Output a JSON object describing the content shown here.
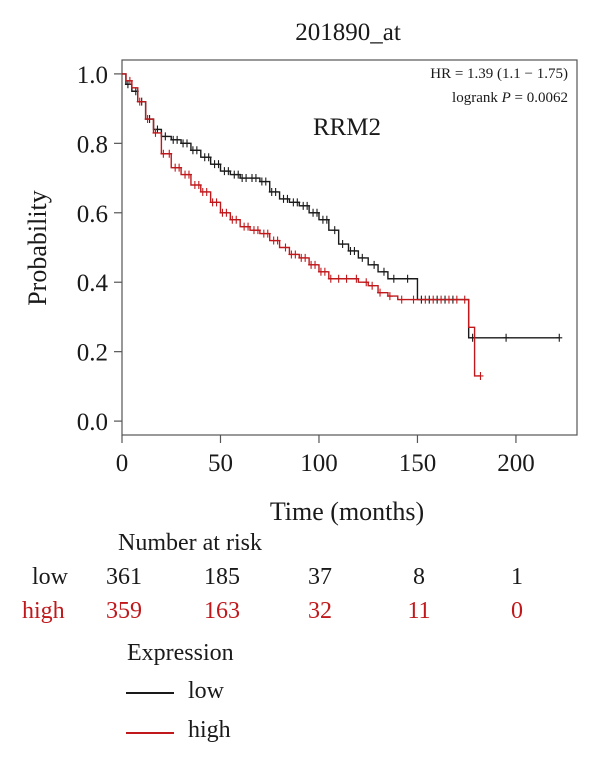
{
  "chart_data": {
    "type": "line",
    "title": "201890_at",
    "annotation": "RRM2",
    "stats": {
      "hr_text": "HR = 1.39 (1.1 − 1.75)",
      "logrank_prefix": "logrank ",
      "logrank_p_symbol": "P",
      "logrank_p_value": " = 0.0062"
    },
    "xlabel": "Time (months)",
    "ylabel": "Probability",
    "xlim": [
      0,
      231
    ],
    "ylim": [
      -0.04,
      1.04
    ],
    "xticks": [
      0,
      50,
      100,
      150,
      200
    ],
    "yticks": [
      0.0,
      0.2,
      0.4,
      0.6,
      0.8,
      1.0
    ],
    "ytick_labels": [
      "0.0",
      "0.2",
      "0.4",
      "0.6",
      "0.8",
      "1.0"
    ],
    "series": [
      {
        "name": "low",
        "color": "#1a1a1a",
        "x": [
          0,
          2,
          5,
          8,
          12,
          16,
          20,
          25,
          30,
          35,
          40,
          45,
          50,
          55,
          60,
          65,
          70,
          75,
          80,
          85,
          90,
          95,
          100,
          105,
          110,
          115,
          120,
          125,
          130,
          135,
          140,
          145,
          150,
          155,
          160,
          165,
          170,
          175,
          176,
          190,
          200,
          222
        ],
        "y": [
          1.0,
          0.97,
          0.95,
          0.92,
          0.87,
          0.84,
          0.82,
          0.81,
          0.8,
          0.78,
          0.76,
          0.74,
          0.72,
          0.71,
          0.7,
          0.7,
          0.69,
          0.66,
          0.64,
          0.63,
          0.62,
          0.6,
          0.58,
          0.55,
          0.51,
          0.49,
          0.47,
          0.45,
          0.43,
          0.41,
          0.41,
          0.41,
          0.35,
          0.35,
          0.35,
          0.35,
          0.35,
          0.35,
          0.24,
          0.24,
          0.24,
          0.24
        ],
        "censor_x": [
          3,
          7,
          10,
          14,
          18,
          22,
          26,
          28,
          31,
          33,
          36,
          38,
          42,
          44,
          47,
          49,
          52,
          54,
          57,
          59,
          61,
          63,
          66,
          68,
          71,
          73,
          76,
          78,
          82,
          84,
          87,
          89,
          92,
          94,
          97,
          99,
          102,
          104,
          108,
          112,
          116,
          118,
          122,
          128,
          133,
          138,
          145,
          152,
          156,
          160,
          164,
          168,
          178,
          195,
          222
        ]
      },
      {
        "name": "high",
        "color": "#c0181b",
        "x": [
          0,
          2,
          5,
          8,
          12,
          16,
          20,
          25,
          30,
          35,
          40,
          45,
          50,
          55,
          60,
          65,
          70,
          75,
          80,
          85,
          90,
          95,
          100,
          105,
          110,
          115,
          120,
          125,
          130,
          135,
          140,
          145,
          150,
          155,
          160,
          165,
          170,
          175,
          176,
          178,
          179,
          182
        ],
        "y": [
          1.0,
          0.98,
          0.96,
          0.92,
          0.87,
          0.83,
          0.77,
          0.73,
          0.71,
          0.68,
          0.66,
          0.63,
          0.6,
          0.58,
          0.56,
          0.55,
          0.54,
          0.52,
          0.5,
          0.48,
          0.47,
          0.45,
          0.43,
          0.41,
          0.41,
          0.41,
          0.4,
          0.39,
          0.37,
          0.36,
          0.35,
          0.35,
          0.35,
          0.35,
          0.35,
          0.35,
          0.35,
          0.35,
          0.27,
          0.27,
          0.13,
          0.13
        ],
        "censor_x": [
          4,
          9,
          13,
          17,
          21,
          24,
          27,
          29,
          32,
          34,
          37,
          39,
          41,
          43,
          46,
          48,
          51,
          53,
          56,
          58,
          62,
          64,
          67,
          69,
          72,
          74,
          77,
          79,
          83,
          86,
          88,
          91,
          93,
          96,
          98,
          101,
          103,
          106,
          110,
          114,
          119,
          124,
          127,
          131,
          136,
          142,
          148,
          154,
          158,
          162,
          166,
          170,
          174,
          182
        ]
      }
    ]
  },
  "risk_table": {
    "title": "Number at risk",
    "rows": [
      {
        "label": "low",
        "values": [
          "361",
          "185",
          "37",
          "8",
          "1"
        ]
      },
      {
        "label": "high",
        "values": [
          "359",
          "163",
          "32",
          "11",
          "0"
        ]
      }
    ]
  },
  "legend": {
    "title": "Expression",
    "items": [
      {
        "label": "low",
        "color": "#1a1a1a"
      },
      {
        "label": "high",
        "color": "#c0181b"
      }
    ]
  }
}
